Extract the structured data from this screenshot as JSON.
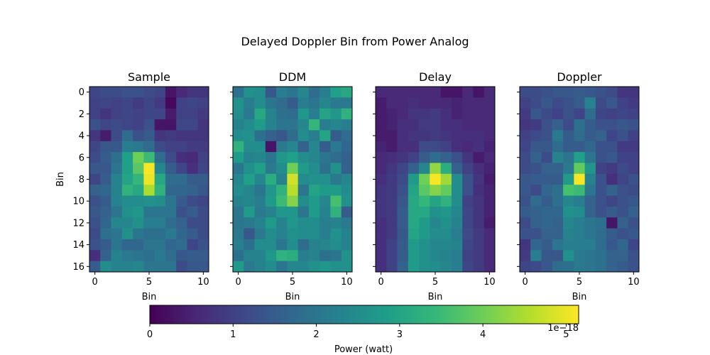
{
  "figure": {
    "title": "Delayed Doppler Bin from Power Analog",
    "colorbar_label": "Power (watt)",
    "colorbar_exponent": "1e−18",
    "colorbar_ticks": [
      0,
      1,
      2,
      3,
      4,
      5
    ],
    "colorbar_tick_labels": [
      "0",
      "1",
      "2",
      "3",
      "4",
      "5"
    ],
    "colormap": "viridis",
    "colormap_stops": [
      "#440154",
      "#482878",
      "#3e4989",
      "#31688e",
      "#26828e",
      "#1f9e89",
      "#35b779",
      "#6ece58",
      "#b5de2b",
      "#fde725"
    ],
    "vmin": 0,
    "vmax": 5.15
  },
  "chart_data": [
    {
      "type": "heatmap",
      "title": "Sample",
      "xlabel": "Bin",
      "ylabel": "Bin",
      "x_ticks": [
        0,
        5,
        10
      ],
      "y_ticks": [
        0,
        2,
        4,
        6,
        8,
        10,
        12,
        14,
        16
      ],
      "values": [
        [
          1.1,
          1.2,
          1.2,
          1.3,
          1.3,
          1.2,
          1.1,
          0.3,
          0.6,
          0.8,
          0.8
        ],
        [
          1.0,
          1.1,
          1.0,
          1.1,
          0.9,
          1.1,
          0.9,
          0.1,
          1.0,
          1.1,
          1.0
        ],
        [
          1.0,
          0.8,
          1.0,
          1.1,
          1.0,
          1.1,
          1.1,
          0.4,
          1.0,
          1.0,
          0.9
        ],
        [
          1.3,
          1.1,
          1.2,
          1.1,
          1.0,
          1.3,
          0.3,
          0.3,
          1.1,
          1.1,
          0.8
        ],
        [
          0.8,
          0.4,
          1.2,
          1.8,
          1.3,
          1.5,
          0.8,
          0.9,
          0.8,
          0.8,
          0.8
        ],
        [
          1.1,
          1.4,
          1.4,
          2.2,
          2.1,
          1.8,
          1.2,
          1.0,
          1.0,
          0.9,
          0.9
        ],
        [
          1.2,
          1.5,
          1.9,
          2.9,
          4.0,
          3.5,
          1.8,
          1.2,
          0.7,
          0.6,
          1.0
        ],
        [
          1.4,
          1.4,
          2.0,
          2.9,
          3.8,
          5.1,
          2.4,
          1.5,
          1.1,
          0.7,
          1.1
        ],
        [
          1.1,
          1.5,
          2.3,
          3.0,
          3.4,
          5.0,
          3.1,
          1.8,
          1.8,
          1.5,
          1.5
        ],
        [
          1.6,
          1.7,
          2.3,
          3.3,
          3.1,
          4.5,
          3.3,
          1.7,
          1.7,
          1.6,
          1.4
        ],
        [
          1.3,
          1.5,
          2.3,
          2.5,
          2.5,
          2.6,
          2.5,
          2.0,
          1.5,
          1.2,
          1.1
        ],
        [
          1.4,
          1.6,
          2.0,
          2.6,
          2.7,
          2.0,
          2.0,
          2.0,
          1.3,
          1.5,
          1.2
        ],
        [
          1.3,
          1.7,
          2.4,
          2.4,
          2.6,
          2.2,
          2.2,
          1.8,
          1.6,
          1.2,
          1.2
        ],
        [
          1.2,
          1.9,
          2.0,
          2.6,
          2.0,
          1.9,
          1.9,
          2.1,
          1.7,
          1.5,
          1.2
        ],
        [
          1.3,
          1.5,
          2.0,
          1.7,
          1.7,
          2.0,
          2.0,
          1.7,
          1.8,
          1.1,
          1.3
        ],
        [
          0.7,
          1.6,
          2.3,
          2.1,
          2.0,
          1.9,
          2.1,
          1.8,
          1.4,
          1.5,
          1.5
        ],
        [
          1.5,
          2.5,
          2.3,
          2.3,
          2.4,
          2.0,
          2.0,
          2.0,
          1.2,
          1.4,
          1.4
        ]
      ]
    },
    {
      "type": "heatmap",
      "title": "DDM",
      "xlabel": "Bin",
      "ylabel": "",
      "x_ticks": [
        0,
        5,
        10
      ],
      "y_ticks": [
        0,
        2,
        4,
        6,
        8,
        10,
        12,
        14,
        16
      ],
      "values": [
        [
          1.9,
          2.6,
          2.5,
          1.4,
          2.2,
          2.0,
          2.4,
          1.8,
          2.2,
          2.9,
          3.1
        ],
        [
          2.6,
          2.2,
          2.5,
          2.0,
          1.8,
          1.5,
          2.2,
          2.0,
          2.4,
          2.1,
          2.1
        ],
        [
          2.5,
          2.1,
          3.1,
          2.3,
          1.9,
          1.8,
          2.7,
          2.2,
          3.0,
          2.7,
          3.3
        ],
        [
          2.3,
          2.5,
          2.8,
          2.3,
          2.0,
          2.0,
          2.4,
          3.4,
          2.2,
          2.4,
          2.2
        ],
        [
          2.5,
          2.6,
          1.9,
          1.6,
          1.4,
          1.8,
          2.5,
          2.2,
          3.0,
          1.5,
          1.8
        ],
        [
          3.3,
          2.5,
          2.5,
          0.3,
          2.1,
          2.4,
          1.6,
          2.4,
          1.5,
          2.1,
          1.7
        ],
        [
          2.8,
          2.3,
          2.4,
          2.0,
          2.7,
          2.9,
          2.5,
          2.4,
          2.0,
          1.8,
          1.6
        ],
        [
          2.0,
          2.6,
          2.9,
          2.1,
          2.5,
          4.0,
          2.8,
          2.5,
          1.9,
          2.6,
          1.6
        ],
        [
          2.4,
          2.9,
          2.4,
          3.2,
          2.3,
          4.8,
          2.5,
          2.6,
          2.6,
          2.1,
          2.4
        ],
        [
          2.5,
          2.4,
          2.0,
          2.7,
          3.3,
          4.6,
          2.0,
          3.0,
          2.8,
          2.8,
          2.5
        ],
        [
          2.3,
          2.4,
          2.2,
          2.8,
          3.5,
          4.2,
          2.5,
          2.8,
          2.4,
          3.6,
          2.6
        ],
        [
          2.0,
          2.8,
          2.1,
          2.3,
          2.7,
          2.7,
          2.0,
          2.8,
          2.3,
          3.3,
          1.5
        ],
        [
          2.0,
          2.1,
          2.3,
          2.8,
          2.3,
          2.7,
          2.5,
          2.5,
          2.2,
          2.3,
          2.1
        ],
        [
          2.1,
          1.4,
          2.1,
          2.5,
          2.3,
          2.6,
          2.5,
          2.5,
          2.2,
          2.6,
          2.3
        ],
        [
          2.2,
          1.9,
          2.5,
          2.5,
          2.0,
          2.5,
          1.8,
          2.3,
          2.4,
          2.5,
          2.3
        ],
        [
          1.9,
          2.3,
          2.3,
          2.7,
          3.3,
          3.2,
          2.2,
          2.3,
          1.9,
          2.0,
          2.6
        ],
        [
          2.8,
          2.1,
          2.3,
          2.5,
          2.0,
          2.4,
          2.4,
          2.6,
          2.7,
          2.6,
          2.6
        ]
      ]
    },
    {
      "type": "heatmap",
      "title": "Delay",
      "xlabel": "Bin",
      "ylabel": "",
      "x_ticks": [
        0,
        5,
        10
      ],
      "y_ticks": [
        0,
        2,
        4,
        6,
        8,
        10,
        12,
        14,
        16
      ],
      "values": [
        [
          0.6,
          0.6,
          0.6,
          0.6,
          0.6,
          0.6,
          0.3,
          0.3,
          0.6,
          0.3,
          0.6
        ],
        [
          0.4,
          0.6,
          0.6,
          0.7,
          0.6,
          0.6,
          0.6,
          0.5,
          0.6,
          0.6,
          0.6
        ],
        [
          0.4,
          0.5,
          0.6,
          0.8,
          0.8,
          0.9,
          0.7,
          0.5,
          0.6,
          0.6,
          0.6
        ],
        [
          0.4,
          0.5,
          0.7,
          0.7,
          0.9,
          0.9,
          0.7,
          0.7,
          0.6,
          0.6,
          0.6
        ],
        [
          0.4,
          0.4,
          0.7,
          0.8,
          0.8,
          0.9,
          0.8,
          0.7,
          0.7,
          0.7,
          0.6
        ],
        [
          0.5,
          0.4,
          0.7,
          0.7,
          1.2,
          1.2,
          1.0,
          0.7,
          0.6,
          0.7,
          0.5
        ],
        [
          0.6,
          0.7,
          0.8,
          1.0,
          1.5,
          1.8,
          1.6,
          1.3,
          0.8,
          0.4,
          0.6
        ],
        [
          0.6,
          0.8,
          1.1,
          1.6,
          2.4,
          4.3,
          3.2,
          1.6,
          1.0,
          0.7,
          0.5
        ],
        [
          0.7,
          0.9,
          1.2,
          2.8,
          4.0,
          5.1,
          4.4,
          2.5,
          1.3,
          0.8,
          0.4
        ],
        [
          0.8,
          0.9,
          1.3,
          3.0,
          3.8,
          4.2,
          3.9,
          2.5,
          1.3,
          0.7,
          0.5
        ],
        [
          0.8,
          0.9,
          1.4,
          3.1,
          3.4,
          3.0,
          3.3,
          2.5,
          1.0,
          0.8,
          0.5
        ],
        [
          0.8,
          0.9,
          1.5,
          3.1,
          3.1,
          2.6,
          2.7,
          2.4,
          1.1,
          0.8,
          0.5
        ],
        [
          0.7,
          0.9,
          1.5,
          3.1,
          2.8,
          2.4,
          2.6,
          2.3,
          1.1,
          0.8,
          0.4
        ],
        [
          0.7,
          0.9,
          1.4,
          3.0,
          2.8,
          2.5,
          2.5,
          2.2,
          1.2,
          0.9,
          0.6
        ],
        [
          0.7,
          1.0,
          1.5,
          2.8,
          2.6,
          2.4,
          2.4,
          2.3,
          1.1,
          0.9,
          0.6
        ],
        [
          0.7,
          1.0,
          1.5,
          2.8,
          2.6,
          2.4,
          2.3,
          2.2,
          1.0,
          0.9,
          0.6
        ],
        [
          0.7,
          1.0,
          1.6,
          2.8,
          2.6,
          2.5,
          2.4,
          2.2,
          1.1,
          0.9,
          0.6
        ]
      ]
    },
    {
      "type": "heatmap",
      "title": "Doppler",
      "xlabel": "Bin",
      "ylabel": "",
      "x_ticks": [
        0,
        5,
        10
      ],
      "y_ticks": [
        0,
        2,
        4,
        6,
        8,
        10,
        12,
        14,
        16
      ],
      "values": [
        [
          1.2,
          1.2,
          1.3,
          1.4,
          1.4,
          1.5,
          1.4,
          1.3,
          1.2,
          0.8,
          0.8
        ],
        [
          1.0,
          1.2,
          1.4,
          1.2,
          1.3,
          1.5,
          2.3,
          1.2,
          1.4,
          1.0,
          0.9
        ],
        [
          0.9,
          1.4,
          1.2,
          1.0,
          1.3,
          1.1,
          1.8,
          1.1,
          1.0,
          1.1,
          1.0
        ],
        [
          0.8,
          0.9,
          1.3,
          1.6,
          1.2,
          1.9,
          1.5,
          1.3,
          1.3,
          1.4,
          1.3
        ],
        [
          1.0,
          1.2,
          1.3,
          2.1,
          1.5,
          1.8,
          1.5,
          1.6,
          1.1,
          1.3,
          1.0
        ],
        [
          1.1,
          1.4,
          1.4,
          1.8,
          1.5,
          1.5,
          1.7,
          1.3,
          1.3,
          0.9,
          0.9
        ],
        [
          1.2,
          1.6,
          1.2,
          2.3,
          2.0,
          2.9,
          2.0,
          1.3,
          1.4,
          1.0,
          1.0
        ],
        [
          1.2,
          1.3,
          1.6,
          1.6,
          2.1,
          3.9,
          2.7,
          1.0,
          0.9,
          1.2,
          1.0
        ],
        [
          1.4,
          1.5,
          1.5,
          1.5,
          2.8,
          5.1,
          2.3,
          1.3,
          0.7,
          1.1,
          1.3
        ],
        [
          1.4,
          1.2,
          1.7,
          1.9,
          3.6,
          3.5,
          2.0,
          1.3,
          1.6,
          1.3,
          1.2
        ],
        [
          1.3,
          1.8,
          1.5,
          1.9,
          2.4,
          2.2,
          1.6,
          1.3,
          1.1,
          1.3,
          1.4
        ],
        [
          1.5,
          1.6,
          1.7,
          1.7,
          2.6,
          2.5,
          1.6,
          1.3,
          1.5,
          1.3,
          1.6
        ],
        [
          1.2,
          1.6,
          1.7,
          1.6,
          2.4,
          2.2,
          2.0,
          1.9,
          0.3,
          1.6,
          1.3
        ],
        [
          1.3,
          1.3,
          1.6,
          1.6,
          2.3,
          2.2,
          2.0,
          1.8,
          1.5,
          1.3,
          1.4
        ],
        [
          0.8,
          1.7,
          1.5,
          2.0,
          2.2,
          2.2,
          2.2,
          1.8,
          1.4,
          1.7,
          1.1
        ],
        [
          0.9,
          2.2,
          1.4,
          1.4,
          2.6,
          2.1,
          2.0,
          1.9,
          1.6,
          1.6,
          1.3
        ],
        [
          1.1,
          1.2,
          1.4,
          1.8,
          1.9,
          2.1,
          2.0,
          1.9,
          1.6,
          1.5,
          1.3
        ]
      ]
    }
  ]
}
